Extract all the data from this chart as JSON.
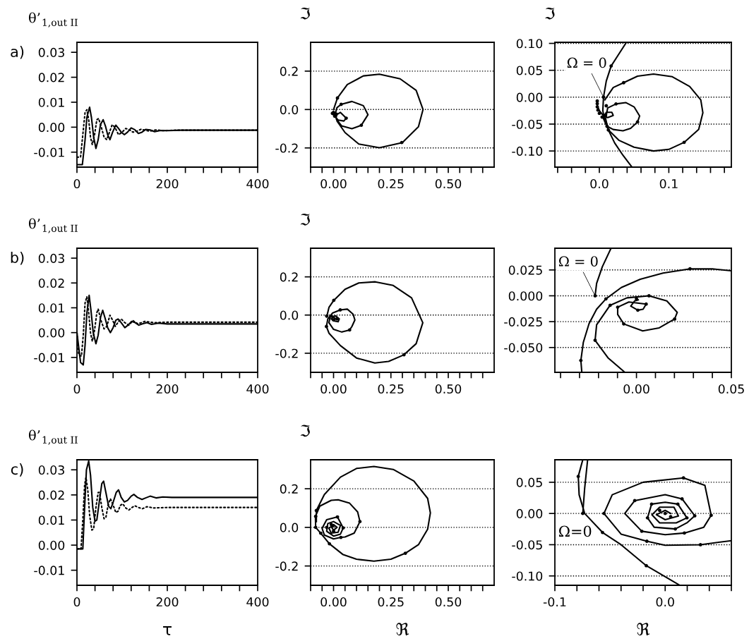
{
  "chart_data": [
    {
      "type": "line",
      "ylabel": "θ’$_{1,out II}$",
      "annotations": [
        "a)"
      ],
      "xlim": [
        0,
        400
      ],
      "ylim": [
        -0.016,
        0.034
      ],
      "xticks": [
        0,
        {
          "value": 40,
          "label": null
        },
        {
          "value": 80,
          "label": null
        },
        {
          "value": 120,
          "label": null
        },
        {
          "value": 160,
          "label": null
        },
        200,
        {
          "value": 240,
          "label": null
        },
        {
          "value": 280,
          "label": null
        },
        {
          "value": 320,
          "label": null
        },
        {
          "value": 360,
          "label": null
        },
        400
      ],
      "yticks": [
        {
          "value": 0.03,
          "label": "0.03"
        },
        {
          "value": 0.02,
          "label": "0.02"
        },
        {
          "value": 0.01,
          "label": "0.01"
        },
        {
          "value": 0.0,
          "label": "0.00"
        },
        {
          "value": -0.01,
          "label": "-0.01"
        }
      ],
      "series": [
        {
          "color": "#000000",
          "line_style": "solid",
          "x": [
            0,
            12,
            18,
            22,
            28,
            32,
            37,
            42,
            47,
            52,
            58,
            63,
            68,
            73,
            79,
            86,
            92,
            98,
            105,
            112,
            120,
            128,
            136,
            144,
            152,
            162,
            172,
            185,
            200,
            230,
            400
          ],
          "values": [
            -0.015,
            -0.015,
            -0.005,
            0.004,
            0.008,
            0.004,
            -0.004,
            -0.0085,
            -0.005,
            0.001,
            0.003,
            0.0005,
            -0.003,
            -0.005,
            -0.002,
            0.0008,
            -0.0005,
            -0.002,
            -0.003,
            -0.002,
            -0.0003,
            -0.001,
            -0.0025,
            -0.002,
            -0.0009,
            -0.0011,
            -0.0018,
            -0.0013,
            -0.0014,
            -0.0012,
            -0.0012
          ]
        },
        {
          "color": "#000000",
          "line_style": "dotted",
          "x": [
            0,
            8,
            13,
            18,
            22,
            26,
            30,
            34,
            39,
            44,
            48,
            54,
            60,
            66,
            72,
            78,
            84,
            92,
            100,
            108,
            116,
            124,
            134,
            142,
            150,
            160,
            175,
            190,
            220,
            400
          ],
          "values": [
            -0.012,
            -0.012,
            -0.003,
            0.006,
            0.007,
            0.003,
            -0.004,
            -0.007,
            -0.003,
            0.003,
            0.0035,
            0.0,
            -0.004,
            -0.005,
            -0.002,
            0.001,
            0.0,
            -0.003,
            -0.002,
            -0.0005,
            -0.001,
            -0.002,
            -0.0015,
            -0.0008,
            -0.0012,
            -0.0016,
            -0.0011,
            -0.0014,
            -0.0012,
            -0.0012
          ]
        }
      ]
    },
    {
      "type": "line",
      "ylabel": "ℑ",
      "grid": "y",
      "xlim": [
        -0.1,
        0.7
      ],
      "ylim": [
        -0.3,
        0.35
      ],
      "xticks": [
        {
          "value": -0.1,
          "label": null
        },
        {
          "value": -0.05,
          "label": null
        },
        {
          "value": 0.0,
          "label": "0.00"
        },
        {
          "value": 0.05,
          "label": null
        },
        {
          "value": 0.1,
          "label": null
        },
        {
          "value": 0.15,
          "label": null
        },
        {
          "value": 0.2,
          "label": null
        },
        {
          "value": 0.25,
          "label": "0.25"
        },
        {
          "value": 0.3,
          "label": null
        },
        {
          "value": 0.35,
          "label": null
        },
        {
          "value": 0.4,
          "label": null
        },
        {
          "value": 0.45,
          "label": null
        },
        {
          "value": 0.5,
          "label": "0.50"
        },
        {
          "value": 0.55,
          "label": null
        },
        {
          "value": 0.6,
          "label": null
        },
        {
          "value": 0.65,
          "label": null
        }
      ],
      "yticks": [
        {
          "value": 0.2,
          "label": "0.2"
        },
        {
          "value": 0.0,
          "label": "0.0"
        },
        {
          "value": -0.2,
          "label": "-0.2"
        }
      ],
      "series": [
        {
          "color": "#000000",
          "line_style": "solid",
          "x": [
            0.0,
            0.017,
            0.06,
            0.13,
            0.2,
            0.29,
            0.36,
            0.39,
            0.37,
            0.3,
            0.2,
            0.11,
            0.05,
            0.015,
            0.008,
            0.015,
            0.033,
            0.08,
            0.13,
            0.15,
            0.121,
            0.08,
            0.035,
            0.012,
            0.01,
            0.03,
            0.055,
            0.045,
            0.02,
            0.005,
            0.0,
            0.015,
            0.012,
            0.0,
            -0.005,
            0.003,
            0.002
          ],
          "values": [
            0.0,
            0.06,
            0.13,
            0.175,
            0.184,
            0.16,
            0.1,
            0.0,
            -0.09,
            -0.172,
            -0.199,
            -0.18,
            -0.12,
            -0.06,
            -0.02,
            0.01,
            0.027,
            0.042,
            0.02,
            -0.027,
            -0.082,
            -0.1,
            -0.085,
            -0.05,
            -0.03,
            -0.015,
            -0.045,
            -0.06,
            -0.055,
            -0.035,
            -0.015,
            -0.02,
            -0.035,
            -0.03,
            -0.015,
            -0.015,
            -0.025
          ]
        },
        {
          "type": "scatter",
          "marker": "circle",
          "color": "#000000",
          "x": [
            0.017,
            0.297,
            0.033,
            0.121,
            0.055,
            0.0,
            0.005,
            -0.005,
            0.01
          ],
          "values": [
            0.06,
            -0.172,
            0.027,
            -0.082,
            -0.045,
            -0.015,
            -0.035,
            -0.02,
            -0.03
          ]
        }
      ]
    },
    {
      "type": "line",
      "ylabel": "ℑ",
      "grid": "y",
      "annotations": [
        {
          "text": "Ω = 0",
          "x": 0.006,
          "y": 0.0
        }
      ],
      "xlim": [
        -0.064,
        0.19
      ],
      "ylim": [
        -0.13,
        0.102
      ],
      "xticks": [
        {
          "value": -0.06,
          "label": null
        },
        {
          "value": -0.04,
          "label": null
        },
        {
          "value": -0.02,
          "label": null
        },
        {
          "value": 0.0,
          "label": "0.0"
        },
        {
          "value": 0.02,
          "label": null
        },
        {
          "value": 0.04,
          "label": null
        },
        {
          "value": 0.06,
          "label": null
        },
        {
          "value": 0.08,
          "label": null
        },
        0.1,
        {
          "value": 0.12,
          "label": null
        },
        {
          "value": 0.14,
          "label": null
        },
        {
          "value": 0.16,
          "label": null
        },
        {
          "value": 0.18,
          "label": null
        }
      ],
      "yticks": [
        {
          "value": 0.1,
          "label": "0.10"
        },
        {
          "value": 0.05,
          "label": "0.05"
        },
        {
          "value": 0.0,
          "label": "0.00"
        },
        {
          "value": -0.05,
          "label": "-0.05"
        },
        {
          "value": -0.1,
          "label": "-0.10"
        }
      ],
      "series": [
        {
          "color": "#000000",
          "line_style": "solid",
          "x": [
            0.039,
            0.028,
            0.017,
            0.01,
            0.006,
            0.005,
            0.008,
            0.013,
            0.022,
            0.034,
            0.047
          ],
          "values": [
            0.102,
            0.08,
            0.058,
            0.03,
            0.0,
            -0.025,
            -0.045,
            -0.061,
            -0.085,
            -0.108,
            -0.13
          ]
        },
        {
          "color": "#000000",
          "line_style": "solid",
          "x": [
            0.008,
            0.02,
            0.035,
            0.055,
            0.078,
            0.105,
            0.13,
            0.146,
            0.149,
            0.143,
            0.122,
            0.1,
            0.078,
            0.05,
            0.028,
            0.013,
            0.009,
            0.012,
            0.024,
            0.038,
            0.05,
            0.058,
            0.055,
            0.045,
            0.034,
            0.02,
            0.011,
            0.006,
            0.01,
            0.018,
            0.02,
            0.012,
            0.005,
            0.0,
            -0.003,
            -0.003
          ],
          "values": [
            -0.005,
            0.018,
            0.027,
            0.039,
            0.043,
            0.038,
            0.02,
            -0.005,
            -0.029,
            -0.06,
            -0.084,
            -0.097,
            -0.1,
            -0.093,
            -0.08,
            -0.061,
            -0.04,
            -0.02,
            -0.0125,
            -0.01,
            -0.018,
            -0.035,
            -0.046,
            -0.058,
            -0.0625,
            -0.06,
            -0.054,
            -0.04,
            -0.028,
            -0.028,
            -0.034,
            -0.038,
            -0.033,
            -0.025,
            -0.015,
            -0.007
          ]
        },
        {
          "type": "scatter",
          "marker": "circle",
          "color": "#000000",
          "x": [
            0.006,
            0.017,
            0.035,
            0.122,
            0.013,
            0.01,
            0.024,
            0.055,
            0.011,
            0.009,
            -0.003,
            -0.003,
            -0.003,
            -0.002,
            0.0,
            0.004
          ],
          "values": [
            0.0,
            0.058,
            0.027,
            -0.084,
            -0.061,
            -0.016,
            -0.0125,
            -0.046,
            -0.054,
            -0.033,
            -0.007,
            -0.012,
            -0.018,
            -0.024,
            -0.03,
            -0.037
          ]
        }
      ]
    },
    {
      "type": "line",
      "ylabel": "θ’$_{1,out II}$",
      "annotations": [
        "b)"
      ],
      "xlim": [
        0,
        400
      ],
      "ylim": [
        -0.016,
        0.034
      ],
      "xticks": [
        0,
        {
          "value": 40,
          "label": null
        },
        {
          "value": 80,
          "label": null
        },
        {
          "value": 120,
          "label": null
        },
        {
          "value": 160,
          "label": null
        },
        200,
        {
          "value": 240,
          "label": null
        },
        {
          "value": 280,
          "label": null
        },
        {
          "value": 320,
          "label": null
        },
        {
          "value": 360,
          "label": null
        },
        400
      ],
      "yticks": [
        {
          "value": 0.03,
          "label": "0.03"
        },
        {
          "value": 0.02,
          "label": "0.02"
        },
        {
          "value": 0.01,
          "label": "0.01"
        },
        {
          "value": 0.0,
          "label": "0.00"
        },
        {
          "value": -0.01,
          "label": "-0.01"
        }
      ],
      "series": [
        {
          "color": "#000000",
          "line_style": "solid",
          "x": [
            0,
            4,
            8,
            14,
            18,
            22,
            27,
            31,
            36,
            42,
            47,
            52,
            57,
            62,
            68,
            74,
            80,
            86,
            91,
            98,
            106,
            113,
            121,
            129,
            137,
            145,
            155,
            165,
            180,
            200,
            400
          ],
          "values": [
            0.0,
            -0.006,
            -0.012,
            -0.013,
            -0.005,
            0.008,
            0.015,
            0.009,
            0.0,
            -0.0045,
            -0.001,
            0.006,
            0.009,
            0.006,
            0.002,
            0.0,
            0.002,
            0.005,
            0.0055,
            0.004,
            0.002,
            0.003,
            0.0045,
            0.004,
            0.003,
            0.0035,
            0.004,
            0.0033,
            0.0038,
            0.0035,
            0.0035
          ]
        },
        {
          "color": "#000000",
          "line_style": "dotted",
          "x": [
            0,
            4,
            10,
            14,
            18,
            22,
            26,
            30,
            34,
            39,
            44,
            47,
            53,
            60,
            66,
            73,
            79,
            85,
            92,
            98,
            106,
            115,
            124,
            135,
            150,
            170,
            200,
            400
          ],
          "values": [
            0.0,
            -0.009,
            -0.0095,
            -0.001,
            0.012,
            0.0145,
            0.008,
            0.0,
            -0.0035,
            0.001,
            0.008,
            0.0095,
            0.005,
            0.0015,
            0.0025,
            0.007,
            0.005,
            0.0025,
            0.0045,
            0.0055,
            0.004,
            0.003,
            0.0048,
            0.0035,
            0.0045,
            0.004,
            0.0042,
            0.0042
          ]
        }
      ]
    },
    {
      "type": "line",
      "ylabel": "ℑ",
      "grid": "y",
      "xlim": [
        -0.1,
        0.7
      ],
      "ylim": [
        -0.3,
        0.35
      ],
      "xticks": [
        {
          "value": -0.1,
          "label": null
        },
        {
          "value": -0.05,
          "label": null
        },
        {
          "value": 0.0,
          "label": "0.00"
        },
        {
          "value": 0.05,
          "label": null
        },
        {
          "value": 0.1,
          "label": null
        },
        {
          "value": 0.15,
          "label": null
        },
        {
          "value": 0.2,
          "label": null
        },
        {
          "value": 0.25,
          "label": "0.25"
        },
        {
          "value": 0.3,
          "label": null
        },
        {
          "value": 0.35,
          "label": null
        },
        {
          "value": 0.4,
          "label": null
        },
        {
          "value": 0.45,
          "label": null
        },
        {
          "value": 0.5,
          "label": "0.50"
        },
        {
          "value": 0.55,
          "label": null
        },
        {
          "value": 0.6,
          "label": null
        },
        {
          "value": 0.65,
          "label": null
        }
      ],
      "yticks": [
        {
          "value": 0.2,
          "label": "0.2"
        },
        {
          "value": 0.0,
          "label": "0.0"
        },
        {
          "value": -0.2,
          "label": "-0.2"
        }
      ],
      "series": [
        {
          "color": "#000000",
          "line_style": "solid",
          "x": [
            -0.03,
            -0.02,
            0.001,
            0.05,
            0.11,
            0.182,
            0.26,
            0.34,
            0.389,
            0.36,
            0.307,
            0.24,
            0.18,
            0.1,
            0.03,
            -0.02,
            -0.031,
            -0.025,
            -0.005,
            0.029,
            0.06,
            0.085,
            0.093,
            0.08,
            0.07,
            0.036,
            0.0,
            -0.02,
            -0.015,
            0.01,
            0.025,
            0.02,
            0.0,
            -0.01,
            0.0,
            0.008,
            0.0
          ],
          "values": [
            -0.01,
            0.04,
            0.077,
            0.135,
            0.168,
            0.174,
            0.155,
            0.09,
            -0.04,
            -0.15,
            -0.208,
            -0.243,
            -0.251,
            -0.225,
            -0.16,
            -0.095,
            -0.06,
            -0.02,
            0.01,
            0.027,
            0.031,
            0.005,
            -0.026,
            -0.06,
            -0.078,
            -0.089,
            -0.075,
            -0.04,
            -0.01,
            -0.005,
            -0.02,
            -0.035,
            -0.03,
            -0.02,
            -0.01,
            -0.02,
            -0.022
          ]
        },
        {
          "type": "scatter",
          "marker": "circle",
          "color": "#000000",
          "x": [
            0.001,
            0.307,
            0.029,
            0.07,
            -0.031,
            -0.01,
            0.015,
            0.0,
            -0.03
          ],
          "values": [
            0.077,
            -0.208,
            0.027,
            -0.078,
            -0.06,
            -0.005,
            -0.02,
            -0.025,
            -0.005
          ]
        }
      ]
    },
    {
      "type": "line",
      "grid": "y",
      "annotations": [
        {
          "text": "Ω = 0",
          "x": -0.0218,
          "y": 0.0
        }
      ],
      "xlim": [
        -0.043,
        0.05
      ],
      "ylim": [
        -0.074,
        0.046
      ],
      "xticks": [
        {
          "value": -0.04,
          "label": null
        },
        {
          "value": -0.03,
          "label": null
        },
        {
          "value": -0.02,
          "label": null
        },
        {
          "value": -0.01,
          "label": null
        },
        {
          "value": 0.0,
          "label": "0.00"
        },
        {
          "value": 0.01,
          "label": null
        },
        {
          "value": 0.02,
          "label": null
        },
        {
          "value": 0.03,
          "label": null
        },
        {
          "value": 0.04,
          "label": null
        },
        {
          "value": 0.05,
          "label": "0.05"
        }
      ],
      "yticks": [
        {
          "value": 0.025,
          "label": "0.025"
        },
        {
          "value": 0.0,
          "label": "0.000"
        },
        {
          "value": -0.025,
          "label": "-0.025"
        },
        {
          "value": -0.05,
          "label": "-0.050"
        }
      ],
      "series": [
        {
          "color": "#000000",
          "line_style": "solid",
          "x": [
            -0.0218,
            -0.021,
            -0.018,
            -0.0134
          ],
          "values": [
            0.0,
            0.012,
            0.028,
            0.046
          ]
        },
        {
          "color": "#000000",
          "line_style": "solid",
          "x": [
            -0.0288,
            -0.0293,
            -0.028,
            -0.025,
            -0.021,
            -0.0161,
            -0.008,
            0.002,
            0.014,
            0.0282,
            0.04,
            0.05
          ],
          "values": [
            -0.074,
            -0.0625,
            -0.045,
            -0.027,
            -0.013,
            -0.003,
            0.008,
            0.016,
            0.022,
            0.0261,
            0.026,
            0.0242
          ]
        },
        {
          "color": "#000000",
          "line_style": "solid",
          "x": [
            -0.0061,
            -0.015,
            -0.0218,
            -0.021,
            -0.0139,
            -0.005,
            0.0066,
            0.016,
            0.0215,
            0.0201,
            0.012,
            0.0033,
            -0.0067,
            -0.0099,
            -0.0099,
            -0.004,
            0.0051,
            0.0035,
            0.0007,
            -0.003,
            -0.001,
            0.001,
            0.0
          ],
          "values": [
            -0.074,
            -0.06,
            -0.043,
            -0.028,
            -0.0092,
            -0.002,
            0.0,
            -0.005,
            -0.016,
            -0.0225,
            -0.031,
            -0.034,
            -0.0272,
            -0.018,
            -0.011,
            -0.006,
            -0.008,
            -0.013,
            -0.0139,
            -0.01,
            -0.005,
            -0.004,
            -0.002
          ]
        },
        {
          "type": "scatter",
          "marker": "circle",
          "color": "#000000",
          "x": [
            -0.0218,
            -0.0293,
            -0.0161,
            0.0282,
            -0.0218,
            -0.0139,
            0.0066,
            0.0201,
            -0.0067,
            -0.0099,
            0.0051,
            0.0007,
            0.0
          ],
          "values": [
            0.0,
            -0.0625,
            -0.003,
            0.0261,
            -0.043,
            -0.0092,
            0.0,
            -0.0225,
            -0.0272,
            -0.011,
            -0.008,
            -0.0139,
            -0.003
          ]
        }
      ]
    },
    {
      "type": "line",
      "ylabel": "θ’$_{1,out II}$",
      "xlabel": "τ",
      "annotations": [
        "c)"
      ],
      "xlim": [
        0,
        400
      ],
      "ylim": [
        -0.016,
        0.034
      ],
      "xticks": [
        0,
        {
          "value": 40,
          "label": null
        },
        {
          "value": 80,
          "label": null
        },
        {
          "value": 120,
          "label": null
        },
        {
          "value": 160,
          "label": null
        },
        200,
        {
          "value": 240,
          "label": null
        },
        {
          "value": 280,
          "label": null
        },
        {
          "value": 320,
          "label": null
        },
        {
          "value": 360,
          "label": null
        },
        400
      ],
      "yticks": [
        {
          "value": 0.03,
          "label": "0.03"
        },
        {
          "value": 0.02,
          "label": "0.02"
        },
        {
          "value": 0.01,
          "label": "0.01"
        },
        {
          "value": 0.0,
          "label": "0.00"
        },
        {
          "value": -0.01,
          "label": "-0.01"
        }
      ],
      "series": [
        {
          "color": "#000000",
          "line_style": "solid",
          "x": [
            0,
            13,
            17,
            21,
            26,
            30,
            35,
            40,
            44,
            50,
            55,
            59,
            64,
            70,
            75,
            80,
            87,
            92,
            98,
            105,
            112,
            120,
            126,
            134,
            144,
            152,
            162,
            175,
            190,
            210,
            400
          ],
          "values": [
            -0.0015,
            -0.0015,
            0.015,
            0.03,
            0.0335,
            0.028,
            0.015,
            0.0095,
            0.01,
            0.018,
            0.0245,
            0.0255,
            0.021,
            0.0155,
            0.0145,
            0.017,
            0.021,
            0.022,
            0.019,
            0.0172,
            0.0178,
            0.0195,
            0.0202,
            0.019,
            0.0182,
            0.0188,
            0.0195,
            0.0188,
            0.0192,
            0.019,
            0.019
          ]
        },
        {
          "color": "#000000",
          "line_style": "dotted",
          "x": [
            0,
            9,
            13,
            17,
            20,
            24,
            28,
            33,
            37,
            42,
            47,
            50,
            55,
            60,
            64,
            69,
            74,
            80,
            86,
            91,
            96,
            101,
            108,
            115,
            122,
            128,
            136,
            145,
            155,
            170,
            200,
            400
          ],
          "values": [
            -0.0015,
            -0.0015,
            0.01,
            0.024,
            0.027,
            0.022,
            0.012,
            0.006,
            0.0065,
            0.015,
            0.021,
            0.021,
            0.015,
            0.0105,
            0.011,
            0.016,
            0.0185,
            0.016,
            0.013,
            0.0135,
            0.0158,
            0.0165,
            0.0148,
            0.014,
            0.015,
            0.0157,
            0.015,
            0.0145,
            0.0153,
            0.0148,
            0.015,
            0.015
          ]
        }
      ]
    },
    {
      "type": "line",
      "ylabel": "ℑ",
      "xlabel": "ℜ",
      "grid": "y",
      "xlim": [
        -0.1,
        0.7
      ],
      "ylim": [
        -0.3,
        0.35
      ],
      "xticks": [
        {
          "value": -0.1,
          "label": null
        },
        {
          "value": -0.05,
          "label": null
        },
        {
          "value": 0.0,
          "label": "0.00"
        },
        {
          "value": 0.05,
          "label": null
        },
        {
          "value": 0.1,
          "label": null
        },
        {
          "value": 0.15,
          "label": null
        },
        {
          "value": 0.2,
          "label": null
        },
        {
          "value": 0.25,
          "label": "0.25"
        },
        {
          "value": 0.3,
          "label": null
        },
        {
          "value": 0.35,
          "label": null
        },
        {
          "value": 0.4,
          "label": null
        },
        {
          "value": 0.45,
          "label": null
        },
        {
          "value": 0.5,
          "label": "0.50"
        },
        {
          "value": 0.55,
          "label": null
        },
        {
          "value": 0.6,
          "label": null
        },
        {
          "value": 0.65,
          "label": null
        }
      ],
      "yticks": [
        {
          "value": 0.2,
          "label": "0.2"
        },
        {
          "value": 0.0,
          "label": "0.0"
        },
        {
          "value": -0.2,
          "label": "-0.2"
        }
      ],
      "series": [
        {
          "color": "#000000",
          "line_style": "solid",
          "x": [
            -0.075,
            -0.075,
            -0.04,
            0.03,
            0.1,
            0.176,
            0.26,
            0.35,
            0.41,
            0.422,
            0.41,
            0.37,
            0.313,
            0.25,
            0.176,
            0.1,
            0.04,
            -0.018,
            -0.056,
            -0.078,
            -0.079,
            -0.06,
            -0.01,
            0.02,
            0.07,
            0.105,
            0.115,
            0.09,
            0.05,
            0.032,
            0.0,
            -0.04,
            -0.05,
            -0.03,
            0.017,
            0.042,
            0.03,
            0.0,
            -0.03,
            -0.025,
            0.0,
            0.03,
            0.02,
            -0.01,
            -0.02,
            0.0,
            0.015,
            0.0,
            -0.008,
            0.0
          ],
          "values": [
            0.03,
            0.087,
            0.17,
            0.26,
            0.305,
            0.315,
            0.3,
            0.24,
            0.15,
            0.075,
            -0.01,
            -0.09,
            -0.134,
            -0.165,
            -0.175,
            -0.165,
            -0.14,
            -0.085,
            -0.03,
            0.0,
            0.057,
            0.11,
            0.14,
            0.143,
            0.125,
            0.08,
            0.03,
            -0.03,
            -0.05,
            -0.052,
            -0.06,
            -0.04,
            -0.005,
            0.04,
            0.054,
            -0.003,
            -0.035,
            -0.045,
            -0.02,
            0.02,
            0.03,
            0.01,
            -0.025,
            -0.03,
            -0.005,
            0.015,
            0.0,
            -0.015,
            0.0,
            0.005
          ]
        },
        {
          "type": "scatter",
          "marker": "circle",
          "color": "#000000",
          "x": [
            0.313,
            -0.075,
            -0.078,
            0.115,
            -0.078,
            -0.056,
            -0.018,
            0.032,
            0.017,
            0.042,
            -0.03,
            0.0,
            -0.01
          ],
          "values": [
            -0.134,
            0.087,
            0.057,
            0.03,
            0.0,
            -0.03,
            -0.085,
            -0.052,
            0.054,
            -0.003,
            0.0,
            -0.02,
            0.015
          ]
        }
      ]
    },
    {
      "type": "line",
      "xlabel": "ℜ",
      "grid": "y",
      "annotations": [
        "Ω=0"
      ],
      "xlim": [
        -0.1,
        0.06
      ],
      "ylim": [
        -0.115,
        0.086
      ],
      "xticks": [
        -0.1,
        {
          "value": -0.08,
          "label": null
        },
        {
          "value": -0.06,
          "label": null
        },
        {
          "value": -0.04,
          "label": null
        },
        {
          "value": -0.02,
          "label": null
        },
        {
          "value": 0.0,
          "label": "0.0"
        },
        {
          "value": 0.02,
          "label": null
        },
        {
          "value": 0.04,
          "label": null
        },
        {
          "value": 0.06,
          "label": null
        }
      ],
      "yticks": [
        {
          "value": 0.05,
          "label": "0.05"
        },
        {
          "value": 0.0,
          "label": "0.00"
        },
        {
          "value": -0.05,
          "label": "-0.05"
        },
        {
          "value": -0.1,
          "label": "-0.10"
        }
      ],
      "series": [
        {
          "color": "#000000",
          "line_style": "solid",
          "x": [
            -0.0703,
            -0.073,
            -0.0747
          ],
          "values": [
            0.086,
            0.04,
            0.0
          ]
        },
        {
          "color": "#000000",
          "line_style": "solid",
          "x": [
            -0.0747,
            -0.0788,
            -0.078,
            -0.073,
            -0.0568,
            -0.04,
            -0.0171,
            0.0128
          ],
          "values": [
            0.086,
            0.0593,
            0.03,
            0.0,
            -0.0304,
            -0.05,
            -0.0836,
            -0.1145
          ]
        },
        {
          "color": "#000000",
          "line_style": "solid",
          "x": [
            0.06,
            0.032,
            0.0,
            -0.0166,
            -0.04,
            -0.0555,
            -0.048,
            -0.02,
            0.0166,
            0.036,
            0.0417,
            0.035,
            0.0174,
            0.0,
            -0.0212,
            -0.0366,
            -0.0276,
            0.0,
            0.0153,
            0.0268,
            0.0197,
            0.0092,
            -0.01,
            -0.016,
            -0.0123,
            0.0,
            0.0115,
            0.0197,
            0.01,
            -0.005,
            -0.012,
            -0.005,
            0.008,
            0.012,
            0.0,
            -0.008,
            0.0,
            0.005
          ],
          "values": [
            -0.0435,
            -0.05,
            -0.051,
            -0.0444,
            -0.033,
            0.0,
            0.03,
            0.05,
            0.057,
            0.045,
            -0.003,
            -0.022,
            -0.0313,
            -0.034,
            -0.0285,
            0.0,
            0.0206,
            0.03,
            0.0234,
            -0.0037,
            -0.015,
            -0.0248,
            -0.022,
            -0.007,
            0.015,
            0.018,
            0.015,
            -0.007,
            -0.015,
            -0.015,
            -0.002,
            0.01,
            0.01,
            -0.004,
            -0.01,
            -0.002,
            0.005,
            0.0
          ]
        },
        {
          "type": "scatter",
          "marker": "circle",
          "color": "#000000",
          "x": [
            -0.0747,
            -0.0788,
            -0.0568,
            -0.0171,
            0.0166,
            0.0417,
            0.032,
            -0.0166,
            -0.0555,
            -0.0276,
            0.0153,
            0.0268,
            0.0174,
            -0.0212,
            -0.0123,
            0.0115,
            0.0197,
            0.0092,
            -0.016,
            -0.005,
            0.005,
            0.0
          ],
          "values": [
            0.0,
            0.0593,
            -0.0304,
            -0.0836,
            0.057,
            -0.003,
            -0.05,
            -0.0444,
            0.0,
            0.0206,
            0.0234,
            -0.0037,
            -0.0313,
            -0.0285,
            0.015,
            0.015,
            -0.007,
            -0.0248,
            -0.007,
            0.005,
            -0.005,
            0.0
          ]
        }
      ]
    }
  ]
}
